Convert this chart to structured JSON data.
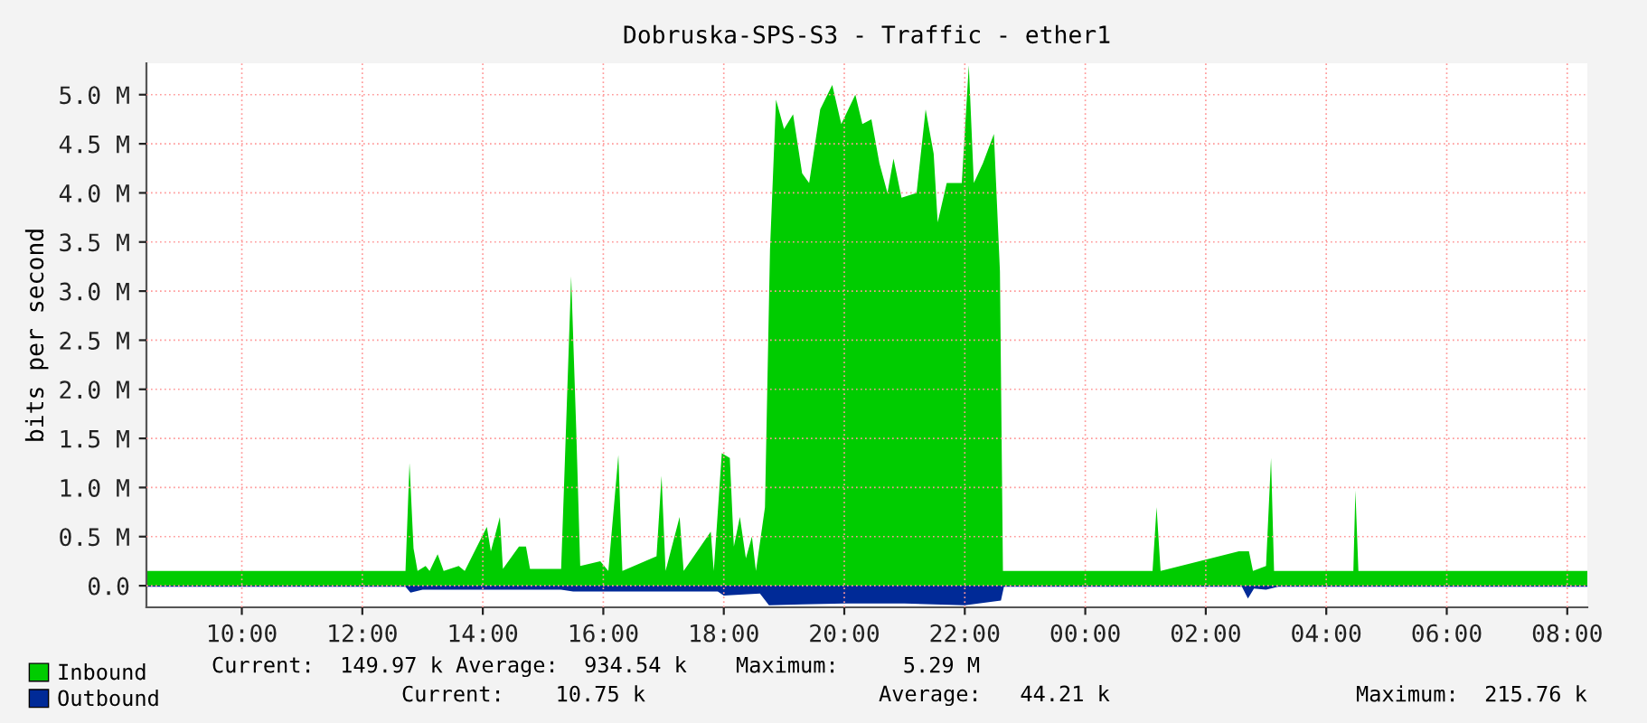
{
  "chart_data": {
    "type": "area",
    "title": "Dobruska-SPS-S3 - Traffic - ether1",
    "ylabel": "bits per second",
    "xlim": [
      "2000-01-01T08:25",
      "2000-01-02T08:20"
    ],
    "ylim": [
      -0.22,
      5.32
    ],
    "xticks": [
      {
        "value": "2000-01-01T10:00",
        "label": "10:00"
      },
      {
        "value": "2000-01-01T12:00",
        "label": "12:00"
      },
      {
        "value": "2000-01-01T14:00",
        "label": "14:00"
      },
      {
        "value": "2000-01-01T16:00",
        "label": "16:00"
      },
      {
        "value": "2000-01-01T18:00",
        "label": "18:00"
      },
      {
        "value": "2000-01-01T20:00",
        "label": "20:00"
      },
      {
        "value": "2000-01-01T22:00",
        "label": "22:00"
      },
      {
        "value": "2000-01-02T00:00",
        "label": "00:00"
      },
      {
        "value": "2000-01-02T02:00",
        "label": "02:00"
      },
      {
        "value": "2000-01-02T04:00",
        "label": "04:00"
      },
      {
        "value": "2000-01-02T06:00",
        "label": "06:00"
      },
      {
        "value": "2000-01-02T08:00",
        "label": "08:00"
      }
    ],
    "yticks": [
      {
        "value": 0,
        "label": "0.0"
      },
      {
        "value": 0.5,
        "label": "0.5 M"
      },
      {
        "value": 1,
        "label": "1.0 M"
      },
      {
        "value": 1.5,
        "label": "1.5 M"
      },
      {
        "value": 2,
        "label": "2.0 M"
      },
      {
        "value": 2.5,
        "label": "2.5 M"
      },
      {
        "value": 3,
        "label": "3.0 M"
      },
      {
        "value": 3.5,
        "label": "3.5 M"
      },
      {
        "value": 4,
        "label": "4.0 M"
      },
      {
        "value": 4.5,
        "label": "4.5 M"
      },
      {
        "value": 5,
        "label": "5.0 M"
      }
    ],
    "grid": true,
    "legend": "bottom",
    "series": [
      {
        "name": "Inbound",
        "color": "#00cc00",
        "x": [
          "2000-01-01T08:25",
          "2000-01-01T12:43",
          "2000-01-01T12:47",
          "2000-01-01T12:51",
          "2000-01-01T12:55",
          "2000-01-01T13:03",
          "2000-01-01T13:07",
          "2000-01-01T13:15",
          "2000-01-01T13:21",
          "2000-01-01T13:36",
          "2000-01-01T13:42",
          "2000-01-01T14:04",
          "2000-01-01T14:08",
          "2000-01-01T14:17",
          "2000-01-01T14:20",
          "2000-01-01T14:36",
          "2000-01-01T14:43",
          "2000-01-01T14:47",
          "2000-01-01T15:18",
          "2000-01-01T15:21",
          "2000-01-01T15:28",
          "2000-01-01T15:33",
          "2000-01-01T15:37",
          "2000-01-01T15:57",
          "2000-01-01T16:05",
          "2000-01-01T16:15",
          "2000-01-01T16:19",
          "2000-01-01T16:53",
          "2000-01-01T16:58",
          "2000-01-01T17:02",
          "2000-01-01T17:16",
          "2000-01-01T17:20",
          "2000-01-01T17:47",
          "2000-01-01T17:50",
          "2000-01-01T17:58",
          "2000-01-01T18:06",
          "2000-01-01T18:10",
          "2000-01-01T18:16",
          "2000-01-01T18:22",
          "2000-01-01T18:28",
          "2000-01-01T18:32",
          "2000-01-01T18:41",
          "2000-01-01T18:46",
          "2000-01-01T18:52",
          "2000-01-01T19:00",
          "2000-01-01T19:09",
          "2000-01-01T19:18",
          "2000-01-01T19:25",
          "2000-01-01T19:36",
          "2000-01-01T19:48",
          "2000-01-01T19:57",
          "2000-01-01T20:11",
          "2000-01-01T20:18",
          "2000-01-01T20:27",
          "2000-01-01T20:35",
          "2000-01-01T20:43",
          "2000-01-01T20:49",
          "2000-01-01T20:57",
          "2000-01-01T21:12",
          "2000-01-01T21:21",
          "2000-01-01T21:29",
          "2000-01-01T21:33",
          "2000-01-01T21:42",
          "2000-01-01T21:57",
          "2000-01-01T22:04",
          "2000-01-01T22:09",
          "2000-01-01T22:18",
          "2000-01-01T22:29",
          "2000-01-01T22:35",
          "2000-01-01T22:38",
          "2000-01-02T01:07",
          "2000-01-02T01:11",
          "2000-01-02T01:15",
          "2000-01-02T02:33",
          "2000-01-02T02:43",
          "2000-01-02T02:47",
          "2000-01-02T03:00",
          "2000-01-02T03:05",
          "2000-01-02T03:08",
          "2000-01-02T04:27",
          "2000-01-02T04:29",
          "2000-01-02T04:32",
          "2000-01-02T08:20"
        ],
        "values": [
          0.15,
          0.15,
          1.25,
          0.38,
          0.15,
          0.2,
          0.15,
          0.32,
          0.15,
          0.2,
          0.15,
          0.6,
          0.35,
          0.7,
          0.17,
          0.4,
          0.4,
          0.17,
          0.17,
          1.05,
          3.15,
          1.6,
          0.2,
          0.25,
          0.15,
          1.33,
          0.15,
          0.3,
          1.12,
          0.15,
          0.7,
          0.15,
          0.55,
          0.15,
          1.35,
          1.3,
          0.4,
          0.7,
          0.28,
          0.5,
          0.15,
          0.8,
          3.42,
          4.95,
          4.65,
          4.8,
          4.2,
          4.1,
          4.85,
          5.1,
          4.7,
          5.0,
          4.7,
          4.75,
          4.3,
          4.0,
          4.35,
          3.95,
          4.0,
          4.85,
          4.4,
          3.7,
          4.1,
          4.1,
          5.3,
          4.1,
          4.3,
          4.6,
          3.2,
          0.15,
          0.15,
          0.8,
          0.15,
          0.35,
          0.35,
          0.15,
          0.2,
          1.3,
          0.15,
          0.15,
          0.97,
          0.15,
          0.15
        ]
      },
      {
        "name": "Outbound",
        "color": "#002a97",
        "x": [
          "2000-01-01T08:25",
          "2000-01-01T12:43",
          "2000-01-01T12:48",
          "2000-01-01T13:00",
          "2000-01-01T15:18",
          "2000-01-01T15:30",
          "2000-01-01T17:54",
          "2000-01-01T18:00",
          "2000-01-01T18:36",
          "2000-01-01T18:45",
          "2000-01-01T19:18",
          "2000-01-01T20:00",
          "2000-01-01T21:00",
          "2000-01-01T22:00",
          "2000-01-01T22:36",
          "2000-01-01T22:39",
          "2000-01-02T02:36",
          "2000-01-02T02:42",
          "2000-01-02T02:48",
          "2000-01-02T03:00",
          "2000-01-02T03:12",
          "2000-01-02T08:20"
        ],
        "values": [
          -0.01,
          -0.01,
          -0.07,
          -0.04,
          -0.04,
          -0.06,
          -0.06,
          -0.1,
          -0.08,
          -0.2,
          -0.19,
          -0.18,
          -0.18,
          -0.2,
          -0.15,
          -0.01,
          -0.01,
          -0.13,
          -0.03,
          -0.04,
          -0.01,
          -0.01
        ]
      }
    ],
    "annotations": [
      "Current:  149.97 k",
      "Average:  934.54 k",
      "Maximum:     5.29 M",
      "Current:    10.75 k",
      "Average:   44.21 k",
      "Maximum:  215.76 k"
    ]
  }
}
